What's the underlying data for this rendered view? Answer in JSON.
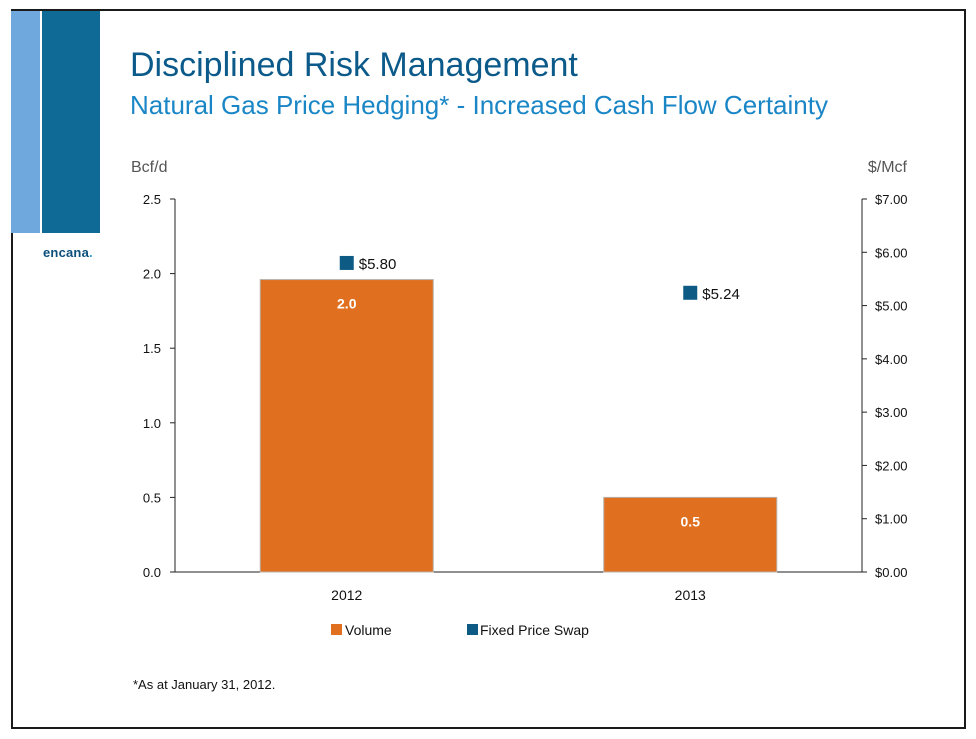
{
  "slide": {
    "title": "Disciplined Risk Management",
    "subtitle": "Natural Gas Price Hedging* - Increased Cash Flow Certainty",
    "logo_text": "encana",
    "logo_dot": ".",
    "footnote": "*As at January 31, 2012."
  },
  "colors": {
    "volume": "#e07020",
    "swap": "#0d5b85",
    "title": "#0b5a8a",
    "subtitle": "#1a86c6"
  },
  "chart_data": {
    "type": "bar",
    "categories": [
      "2012",
      "2013"
    ],
    "series": [
      {
        "name": "Volume",
        "axis": "left",
        "kind": "bar",
        "values": [
          1.96,
          0.5
        ],
        "labels": [
          "2.0",
          "0.5"
        ]
      },
      {
        "name": "Fixed Price Swap",
        "axis": "right",
        "kind": "marker",
        "values": [
          5.8,
          5.24
        ],
        "labels": [
          "$5.80",
          "$5.24"
        ]
      }
    ],
    "ylabel_left": "Bcf/d",
    "ylabel_right": "$/Mcf",
    "ylim_left": [
      0,
      2.5
    ],
    "ylim_right": [
      0,
      7.0
    ],
    "yticks_left": [
      "0.0",
      "0.5",
      "1.0",
      "1.5",
      "2.0",
      "2.5"
    ],
    "yticks_right": [
      "$0.00",
      "$1.00",
      "$2.00",
      "$3.00",
      "$4.00",
      "$5.00",
      "$6.00",
      "$7.00"
    ],
    "legend": [
      "Volume",
      "Fixed Price Swap"
    ],
    "legend_position": "bottom",
    "grid": false
  }
}
